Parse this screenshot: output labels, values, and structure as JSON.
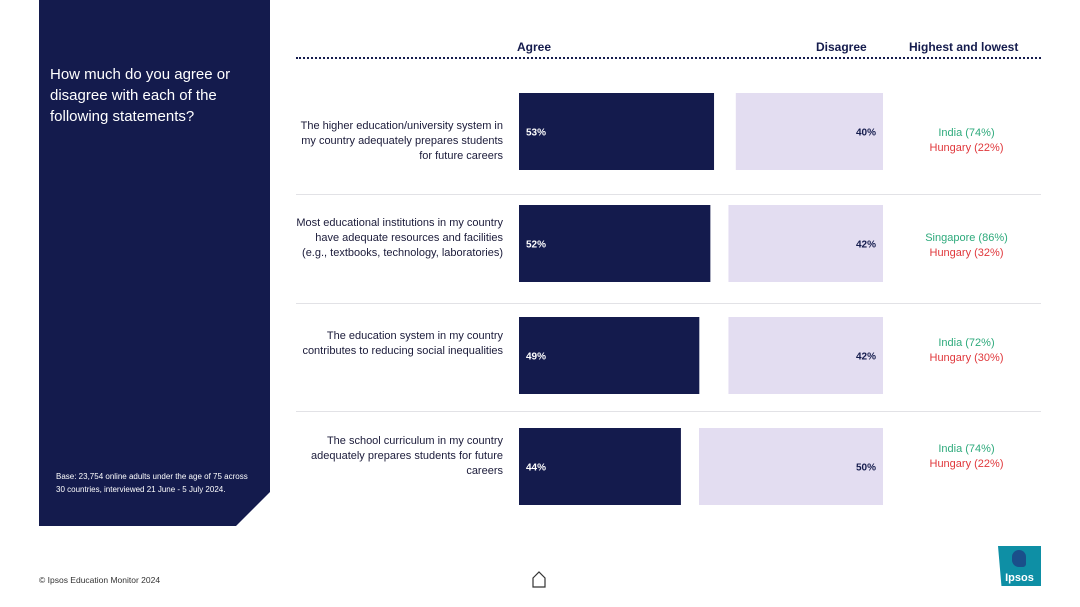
{
  "question": "How much do you agree or disagree with each of the following statements?",
  "base_note": "Base: 23,754 online adults under the age of 75 across 30 countries, interviewed 21 June - 5 July 2024.",
  "headers": {
    "agree": "Agree",
    "disagree": "Disagree",
    "highest_lowest": "Highest and lowest"
  },
  "statements": [
    {
      "text": "The higher education/university system in my country adequately prepares students for future careers",
      "high": "India (74%)",
      "low": "Hungary (22%)"
    },
    {
      "text": "Most educational institutions in my country have adequate resources and facilities (e.g., textbooks, technology, laboratories)",
      "high": "Singapore (86%)",
      "low": "Hungary (32%)"
    },
    {
      "text": "The education system in my country contributes to reducing social inequalities",
      "high": "India (72%)",
      "low": "Hungary (30%)"
    },
    {
      "text": "The school curriculum in my country adequately prepares students for future careers",
      "high": "India (74%)",
      "low": "Hungary (22%)"
    }
  ],
  "chart_data": {
    "type": "bar",
    "orientation": "horizontal",
    "categories": [
      "The higher education/university system in my country adequately prepares students for future careers",
      "Most educational institutions in my country have adequate resources and facilities (e.g., textbooks, technology, laboratories)",
      "The education system in my country contributes to reducing social inequalities",
      "The school curriculum in my country adequately prepares students for future careers"
    ],
    "series": [
      {
        "name": "Agree",
        "values": [
          53,
          52,
          49,
          44
        ],
        "color": "#141b4d"
      },
      {
        "name": "Disagree",
        "values": [
          40,
          42,
          42,
          50
        ],
        "color": "#e3ddf1"
      }
    ],
    "value_suffix": "%",
    "legend": "column-headers-top"
  },
  "colors": {
    "navy": "#141b4d",
    "lavender": "#e3ddf1",
    "high": "#2eaa7c",
    "low": "#e0383c",
    "logo": "#0e8fa5"
  },
  "footer": {
    "copyright": "© Ipsos Education Monitor 2024",
    "home_icon": "home-icon",
    "logo_text": "Ipsos"
  }
}
